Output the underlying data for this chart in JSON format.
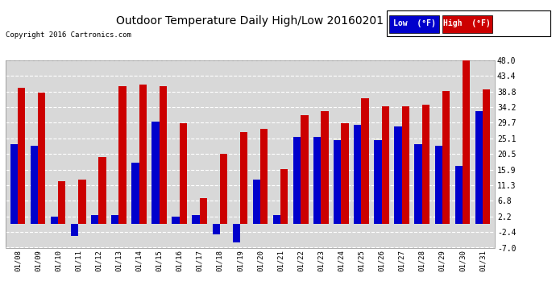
{
  "title": "Outdoor Temperature Daily High/Low 20160201",
  "copyright": "Copyright 2016 Cartronics.com",
  "legend_low": "Low  (°F)",
  "legend_high": "High  (°F)",
  "low_color": "#0000cc",
  "high_color": "#cc0000",
  "background_color": "#ffffff",
  "plot_background": "#d8d8d8",
  "ylim": [
    -7.0,
    48.0
  ],
  "yticks": [
    -7.0,
    -2.4,
    2.2,
    6.8,
    11.3,
    15.9,
    20.5,
    25.1,
    29.7,
    34.2,
    38.8,
    43.4,
    48.0
  ],
  "dates": [
    "01/08",
    "01/09",
    "01/10",
    "01/11",
    "01/12",
    "01/13",
    "01/14",
    "01/15",
    "01/16",
    "01/17",
    "01/18",
    "01/19",
    "01/20",
    "01/21",
    "01/22",
    "01/23",
    "01/24",
    "01/25",
    "01/26",
    "01/27",
    "01/28",
    "01/29",
    "01/30",
    "01/31"
  ],
  "high_values": [
    40.0,
    38.5,
    12.5,
    13.0,
    19.5,
    40.5,
    41.0,
    40.5,
    29.5,
    7.5,
    20.5,
    27.0,
    28.0,
    16.0,
    32.0,
    33.0,
    29.5,
    37.0,
    34.5,
    34.5,
    35.0,
    39.0,
    48.5,
    39.5
  ],
  "low_values": [
    23.5,
    23.0,
    2.0,
    -3.5,
    2.5,
    2.5,
    18.0,
    30.0,
    2.0,
    2.5,
    -3.0,
    -5.5,
    13.0,
    2.5,
    25.5,
    25.5,
    24.5,
    29.0,
    24.5,
    28.5,
    23.5,
    23.0,
    17.0,
    33.0
  ]
}
